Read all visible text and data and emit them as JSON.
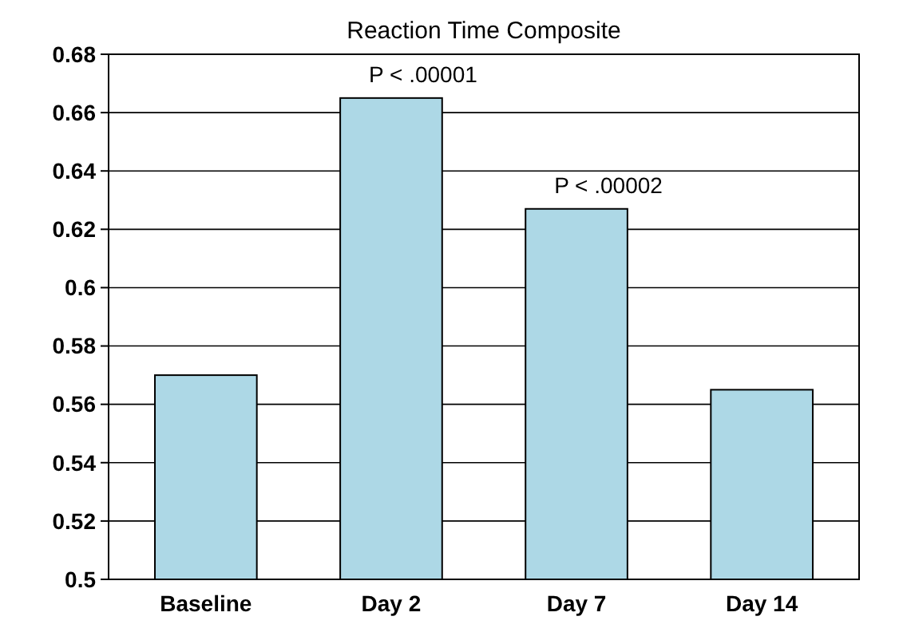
{
  "chart_data": {
    "type": "bar",
    "title": "Reaction Time Composite",
    "categories": [
      "Baseline",
      "Day 2",
      "Day 7",
      "Day 14"
    ],
    "values": [
      0.57,
      0.665,
      0.627,
      0.565
    ],
    "color": "#add8e6",
    "ylim": [
      0.5,
      0.68
    ],
    "yticks": [
      0.5,
      0.52,
      0.54,
      0.56,
      0.58,
      {
        "value": 0.6,
        "label": "0.6"
      },
      0.62,
      0.64,
      0.66,
      0.68
    ],
    "grid": "y",
    "annotations": [
      {
        "text": "P < .00001",
        "x": "Day 2",
        "y": 0.665
      },
      {
        "text": "P < .00002",
        "x": "Day 7",
        "y": 0.627
      }
    ]
  }
}
